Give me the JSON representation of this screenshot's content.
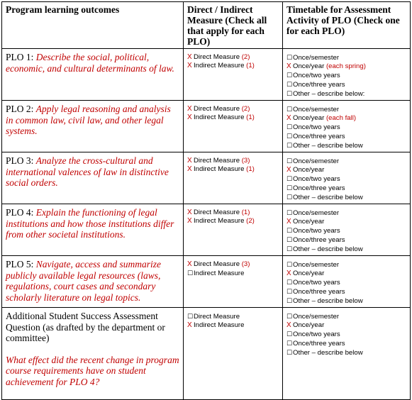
{
  "headers": {
    "col1": "Program learning outcomes",
    "col2": "Direct / Indirect Measure (Check all that apply for each PLO)",
    "col3": "Timetable for Assessment Activity of PLO (Check one for each PLO)"
  },
  "rows": [
    {
      "label": "PLO 1:",
      "description": "Describe the social, political, economic, and cultural determinants of law.",
      "measures": [
        {
          "checked": true,
          "text": "Direct Measure",
          "note": "(2)"
        },
        {
          "checked": true,
          "text": "Indirect Measure",
          "note": "(1)"
        }
      ],
      "timetable": [
        {
          "checked": false,
          "text": "Once/semester",
          "note": ""
        },
        {
          "checked": true,
          "text": "Once/year",
          "note": "(each spring)"
        },
        {
          "checked": false,
          "text": "Once/two years",
          "note": ""
        },
        {
          "checked": false,
          "text": "Once/three years",
          "note": ""
        },
        {
          "checked": false,
          "text": "Other – describe below:",
          "note": ""
        }
      ]
    },
    {
      "label": "PLO 2:",
      "description": "Apply legal reasoning and analysis in common law, civil law, and other legal systems.",
      "measures": [
        {
          "checked": true,
          "text": "Direct Measure",
          "note": "(2)"
        },
        {
          "checked": true,
          "text": "Indirect Measure",
          "note": "(1)"
        }
      ],
      "timetable": [
        {
          "checked": false,
          "text": "Once/semester",
          "note": ""
        },
        {
          "checked": true,
          "text": "Once/year",
          "note": "(each fall)"
        },
        {
          "checked": false,
          "text": "Once/two years",
          "note": ""
        },
        {
          "checked": false,
          "text": "Once/three years",
          "note": ""
        },
        {
          "checked": false,
          "text": "Other – describe below",
          "note": ""
        }
      ]
    },
    {
      "label": "PLO 3:",
      "description": "Analyze the cross-cultural and international valences of law in distinctive social orders.",
      "measures": [
        {
          "checked": true,
          "text": "Direct Measure",
          "note": "(3)"
        },
        {
          "checked": true,
          "text": "Indirect Measure",
          "note": "(1)"
        }
      ],
      "timetable": [
        {
          "checked": false,
          "text": "Once/semester",
          "note": ""
        },
        {
          "checked": true,
          "text": "Once/year",
          "note": ""
        },
        {
          "checked": false,
          "text": "Once/two years",
          "note": ""
        },
        {
          "checked": false,
          "text": "Once/three years",
          "note": ""
        },
        {
          "checked": false,
          "text": "Other – describe below",
          "note": ""
        }
      ]
    },
    {
      "label": "PLO 4:",
      "description": "Explain the functioning of legal institutions and how those institutions differ from other societal institutions.",
      "measures": [
        {
          "checked": true,
          "text": "Direct Measure",
          "note": "(1)"
        },
        {
          "checked": true,
          "text": "Indirect Measure",
          "note": "(2)"
        }
      ],
      "timetable": [
        {
          "checked": false,
          "text": "Once/semester",
          "note": ""
        },
        {
          "checked": true,
          "text": "Once/year",
          "note": ""
        },
        {
          "checked": false,
          "text": "Once/two years",
          "note": ""
        },
        {
          "checked": false,
          "text": "Once/three years",
          "note": ""
        },
        {
          "checked": false,
          "text": "Other – describe below",
          "note": ""
        }
      ]
    },
    {
      "label": "PLO 5:",
      "description": "Navigate, access and summarize publicly available legal resources (laws, regulations, court cases and secondary scholarly literature on legal topics.",
      "measures": [
        {
          "checked": true,
          "text": "Direct Measure",
          "note": "(3)"
        },
        {
          "checked": false,
          "text": "Indirect Measure",
          "note": ""
        }
      ],
      "timetable": [
        {
          "checked": false,
          "text": "Once/semester",
          "note": ""
        },
        {
          "checked": true,
          "text": "Once/year",
          "note": ""
        },
        {
          "checked": false,
          "text": "Once/two years",
          "note": ""
        },
        {
          "checked": false,
          "text": "Once/three years",
          "note": ""
        },
        {
          "checked": false,
          "text": "Other – describe below",
          "note": ""
        }
      ]
    }
  ],
  "additional": {
    "label": "Additional Student Success Assessment Question (as drafted by the department or committee)",
    "question": "What effect did the recent change in program course requirements have on student achievement for PLO 4?",
    "measures": [
      {
        "checked": false,
        "text": "Direct Measure",
        "note": ""
      },
      {
        "checked": true,
        "text": "Indirect Measure",
        "note": ""
      }
    ],
    "timetable": [
      {
        "checked": false,
        "text": "Once/semester",
        "note": ""
      },
      {
        "checked": true,
        "text": "Once/year",
        "note": ""
      },
      {
        "checked": false,
        "text": "Once/two years",
        "note": ""
      },
      {
        "checked": false,
        "text": "Once/three years",
        "note": ""
      },
      {
        "checked": false,
        "text": "Other – describe below",
        "note": ""
      }
    ]
  },
  "marks": {
    "checked": "X",
    "unchecked": "☐"
  }
}
